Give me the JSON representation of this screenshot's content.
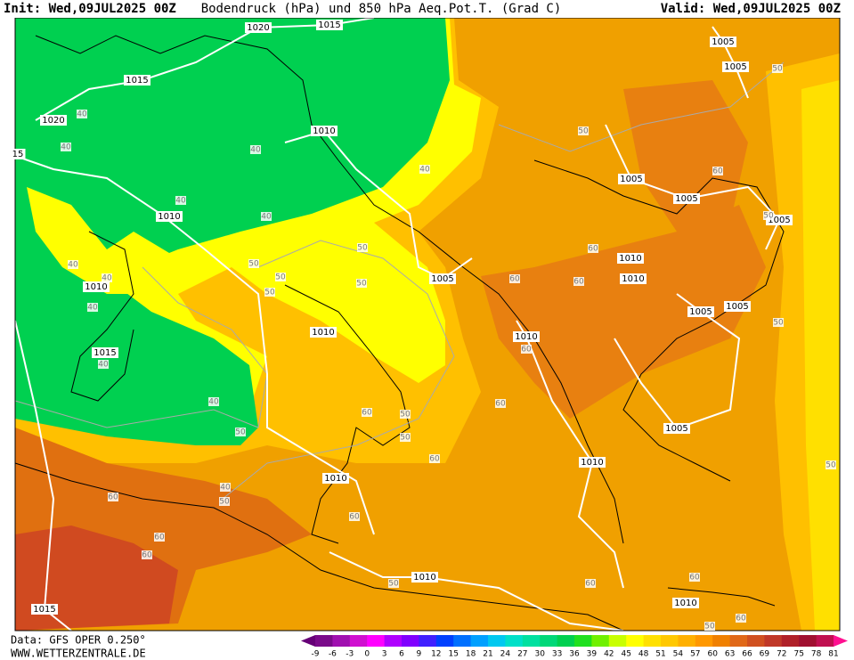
{
  "header": {
    "init": "Init: Wed,09JUL2025 00Z",
    "title": "Bodendruck (hPa) und 850 hPa Aeq.Pot.T. (Grad C)",
    "valid": "Valid: Wed,09JUL2025 00Z"
  },
  "footer": {
    "source": "Data: GFS OPER 0.250°",
    "site": "WWW.WETTERZENTRALE.DE"
  },
  "isobar_labels": [
    "1020",
    "1015",
    "1015",
    "1020",
    "15",
    "1010",
    "1010",
    "1010",
    "1015",
    "1010",
    "1005",
    "1005",
    "1005",
    "1005",
    "1005",
    "1005",
    "1010",
    "1010",
    "1005",
    "1005",
    "1010",
    "1005",
    "1010",
    "1010",
    "1010",
    "1010",
    "1015"
  ],
  "theta_labels": [
    "40",
    "40",
    "40",
    "40",
    "40",
    "40",
    "40",
    "40",
    "40",
    "40",
    "40",
    "40",
    "50",
    "50",
    "60",
    "50",
    "50",
    "50",
    "50",
    "50",
    "50",
    "60",
    "60",
    "60",
    "60",
    "50",
    "60",
    "50",
    "50",
    "60",
    "50",
    "60",
    "50",
    "60",
    "50",
    "60",
    "60",
    "60",
    "50",
    "60",
    "60",
    "50",
    "60"
  ],
  "colorbar": {
    "labels": [
      -9,
      -6,
      -3,
      0,
      3,
      6,
      9,
      12,
      15,
      18,
      21,
      24,
      27,
      30,
      33,
      36,
      39,
      42,
      45,
      48,
      51,
      54,
      57,
      60,
      63,
      66,
      69,
      72,
      75,
      78,
      81
    ],
    "colors": [
      "#7a0a8a",
      "#a010b0",
      "#d010d0",
      "#ff00ff",
      "#b000ff",
      "#8000ff",
      "#4020ff",
      "#0040ff",
      "#0070ff",
      "#00a0ff",
      "#00c8f0",
      "#00e0c8",
      "#00e0a0",
      "#00d878",
      "#00d050",
      "#20e020",
      "#70f000",
      "#c8ff00",
      "#ffff00",
      "#ffe000",
      "#ffc800",
      "#ffb000",
      "#ff9800",
      "#f08000",
      "#e06818",
      "#d05020",
      "#c03828",
      "#b02028",
      "#a01030",
      "#c01050"
    ],
    "low_color": "#660077",
    "high_color": "#ff1090"
  }
}
